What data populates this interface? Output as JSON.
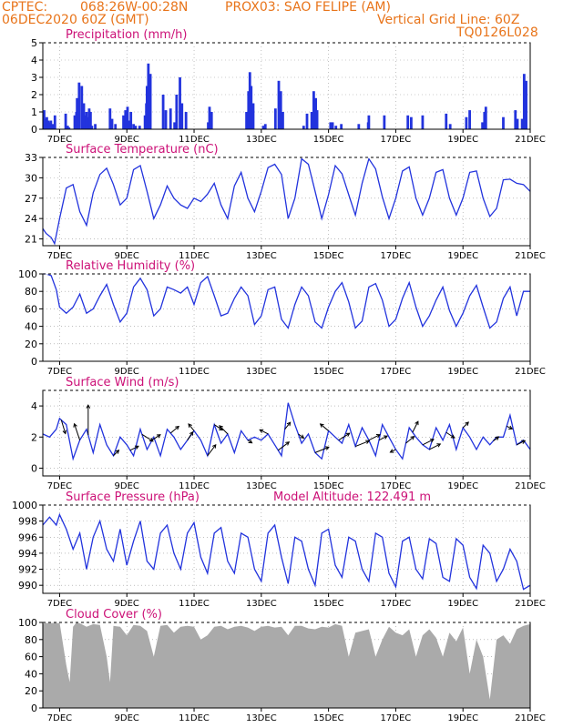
{
  "header": {
    "source": "CPTEC:",
    "coords": "068:26W-00:28N",
    "station": "PROX03: SAO FELIPE (AM)",
    "date": "06DEC2020 60Z (GMT)",
    "grid_note": "Vertical Grid Line: 60Z",
    "code": "TQ0126L028"
  },
  "x_axis": {
    "ticks": [
      "7DEC",
      "9DEC",
      "11DEC",
      "13DEC",
      "15DEC",
      "17DEC",
      "19DEC",
      "21DEC"
    ],
    "tick_days": [
      7,
      9,
      11,
      13,
      15,
      17,
      19,
      21
    ],
    "start_day": 6.5,
    "end_day": 21.0
  },
  "colors": {
    "line": "#2233dd",
    "title": "#cc1177",
    "cloud": "#aaaaaa",
    "grid": "#999999"
  },
  "chart_data": [
    {
      "type": "bar",
      "title": "Precipitation (mm/h)",
      "ylim": [
        0,
        5
      ],
      "yticks": [
        0,
        1,
        2,
        3,
        4,
        5
      ],
      "x_days": [
        6.54,
        6.58,
        6.62,
        6.66,
        6.7,
        6.74,
        6.8,
        6.86,
        7.18,
        7.24,
        7.28,
        7.45,
        7.5,
        7.52,
        7.58,
        7.66,
        7.72,
        7.76,
        7.8,
        7.84,
        7.88,
        7.92,
        7.96,
        8.06,
        8.5,
        8.56,
        8.66,
        8.9,
        8.96,
        9.02,
        9.08,
        9.12,
        9.2,
        9.26,
        9.38,
        9.54,
        9.58,
        9.6,
        9.64,
        9.7,
        10.08,
        10.16,
        10.3,
        10.42,
        10.48,
        10.58,
        10.64,
        10.76,
        11.42,
        11.46,
        11.52,
        12.56,
        12.62,
        12.66,
        12.7,
        12.76,
        13.06,
        13.12,
        13.42,
        13.52,
        13.58,
        13.64,
        14.26,
        14.36,
        14.5,
        14.56,
        14.62,
        14.66,
        15.06,
        15.12,
        15.22,
        15.38,
        15.9,
        16.18,
        16.2,
        16.66,
        17.36,
        17.46,
        17.8,
        18.5,
        18.62,
        19.1,
        19.2,
        19.58,
        19.64,
        19.68,
        20.2,
        20.56,
        20.62,
        20.76,
        20.82,
        20.88
      ],
      "values": [
        1.1,
        0.6,
        0.7,
        0.5,
        0.4,
        0.5,
        0.3,
        0.8,
        0.9,
        0.2,
        0.1,
        0.8,
        1.0,
        1.8,
        2.7,
        2.5,
        1.5,
        0.8,
        1.0,
        0.7,
        1.2,
        1.0,
        0.2,
        0.3,
        1.2,
        0.6,
        0.3,
        0.8,
        1.1,
        1.3,
        0.5,
        1.0,
        0.3,
        0.2,
        0.2,
        0.8,
        1.5,
        2.5,
        3.8,
        3.2,
        2.0,
        1.1,
        1.2,
        0.4,
        2.0,
        3.0,
        1.5,
        1.0,
        0.4,
        1.3,
        1.0,
        1.0,
        2.2,
        3.3,
        2.5,
        1.5,
        0.2,
        0.3,
        1.2,
        2.8,
        2.2,
        1.0,
        0.2,
        0.9,
        1.0,
        2.2,
        1.8,
        1.1,
        0.4,
        0.4,
        0.2,
        0.3,
        0.3,
        0.4,
        0.8,
        0.8,
        0.8,
        0.7,
        0.8,
        0.9,
        0.3,
        0.7,
        1.1,
        0.4,
        1.0,
        1.3,
        0.7,
        1.1,
        0.6,
        0.6,
        3.2,
        2.8
      ]
    },
    {
      "type": "line",
      "title": "Surface Temperature (nC)",
      "ylim": [
        20,
        33
      ],
      "yticks": [
        21,
        24,
        27,
        30,
        33
      ],
      "x_days": [
        6.5,
        6.6,
        6.75,
        6.85,
        7.0,
        7.2,
        7.4,
        7.6,
        7.8,
        8.0,
        8.2,
        8.4,
        8.6,
        8.8,
        9.0,
        9.2,
        9.4,
        9.6,
        9.8,
        10.0,
        10.2,
        10.4,
        10.6,
        10.8,
        11.0,
        11.2,
        11.4,
        11.6,
        11.8,
        12.0,
        12.2,
        12.4,
        12.6,
        12.8,
        13.0,
        13.2,
        13.4,
        13.6,
        13.8,
        14.0,
        14.2,
        14.4,
        14.6,
        14.8,
        15.0,
        15.2,
        15.4,
        15.6,
        15.8,
        16.0,
        16.2,
        16.4,
        16.6,
        16.8,
        17.0,
        17.2,
        17.4,
        17.6,
        17.8,
        18.0,
        18.2,
        18.4,
        18.6,
        18.8,
        19.0,
        19.2,
        19.4,
        19.6,
        19.8,
        20.0,
        20.2,
        20.4,
        20.6,
        20.8,
        21.0
      ],
      "values": [
        22.5,
        21.8,
        21.2,
        20.3,
        24.0,
        28.5,
        29.0,
        25.0,
        23.0,
        27.8,
        30.5,
        31.4,
        29.0,
        26.0,
        27.0,
        31.2,
        31.8,
        28.0,
        24.0,
        26.0,
        28.8,
        27.0,
        26.0,
        25.5,
        27.0,
        26.5,
        27.6,
        29.2,
        26.0,
        24.0,
        28.8,
        30.8,
        27.0,
        25.0,
        28.0,
        31.5,
        32.0,
        30.5,
        24.0,
        27.0,
        32.8,
        32.0,
        28.0,
        24.0,
        27.5,
        31.8,
        30.6,
        27.5,
        24.5,
        29.2,
        32.8,
        31.3,
        27.2,
        24.0,
        27.0,
        31.0,
        31.6,
        27.0,
        24.5,
        27.0,
        30.8,
        31.2,
        27.0,
        24.5,
        27.0,
        30.8,
        31.0,
        27.0,
        24.3,
        25.5,
        29.7,
        29.8,
        29.2,
        29.0,
        28.0
      ]
    },
    {
      "type": "line",
      "title": "Relative Humidity (%)",
      "ylim": [
        0,
        100
      ],
      "yticks": [
        0,
        20,
        40,
        60,
        80,
        100
      ],
      "x_days": [
        6.5,
        6.6,
        6.75,
        6.9,
        7.0,
        7.2,
        7.4,
        7.6,
        7.8,
        8.0,
        8.2,
        8.4,
        8.6,
        8.8,
        9.0,
        9.2,
        9.4,
        9.6,
        9.8,
        10.0,
        10.2,
        10.4,
        10.6,
        10.8,
        11.0,
        11.2,
        11.4,
        11.6,
        11.8,
        12.0,
        12.2,
        12.4,
        12.6,
        12.8,
        13.0,
        13.2,
        13.4,
        13.6,
        13.8,
        14.0,
        14.2,
        14.4,
        14.6,
        14.8,
        15.0,
        15.2,
        15.4,
        15.6,
        15.8,
        16.0,
        16.2,
        16.4,
        16.6,
        16.8,
        17.0,
        17.2,
        17.4,
        17.6,
        17.8,
        18.0,
        18.2,
        18.4,
        18.6,
        18.8,
        19.0,
        19.2,
        19.4,
        19.6,
        19.8,
        20.0,
        20.2,
        20.4,
        20.6,
        20.8,
        21.0
      ],
      "values": [
        100,
        100,
        98,
        82,
        62,
        55,
        62,
        77,
        55,
        60,
        75,
        88,
        65,
        45,
        55,
        85,
        95,
        82,
        52,
        60,
        85,
        82,
        78,
        85,
        65,
        90,
        97,
        75,
        52,
        55,
        72,
        85,
        75,
        42,
        52,
        82,
        85,
        48,
        38,
        65,
        85,
        75,
        45,
        38,
        62,
        80,
        90,
        68,
        38,
        46,
        85,
        89,
        70,
        40,
        48,
        72,
        90,
        62,
        40,
        52,
        70,
        85,
        58,
        40,
        55,
        75,
        87,
        62,
        38,
        45,
        72,
        85,
        52,
        80,
        80
      ]
    },
    {
      "type": "line",
      "title": "Surface Wind (m/s)",
      "ylim": [
        -0.5,
        5
      ],
      "yticks": [
        0,
        2,
        4
      ],
      "x_days": [
        6.5,
        6.7,
        6.9,
        7.0,
        7.2,
        7.4,
        7.6,
        7.8,
        8.0,
        8.2,
        8.4,
        8.6,
        8.8,
        9.0,
        9.2,
        9.4,
        9.6,
        9.8,
        10.0,
        10.2,
        10.4,
        10.6,
        10.8,
        11.0,
        11.2,
        11.4,
        11.6,
        11.8,
        12.0,
        12.2,
        12.4,
        12.6,
        12.8,
        13.0,
        13.2,
        13.4,
        13.6,
        13.8,
        14.0,
        14.2,
        14.4,
        14.6,
        14.8,
        15.0,
        15.2,
        15.4,
        15.6,
        15.8,
        16.0,
        16.2,
        16.4,
        16.6,
        16.8,
        17.0,
        17.2,
        17.4,
        17.6,
        17.8,
        18.0,
        18.2,
        18.4,
        18.6,
        18.8,
        19.0,
        19.2,
        19.4,
        19.6,
        19.8,
        20.0,
        20.2,
        20.4,
        20.6,
        20.8,
        21.0
      ],
      "values": [
        2.2,
        2.0,
        2.5,
        3.2,
        2.8,
        0.6,
        1.8,
        2.5,
        1.0,
        2.8,
        1.5,
        0.8,
        2.0,
        1.5,
        0.8,
        2.5,
        1.2,
        2.0,
        0.8,
        2.5,
        2.0,
        1.2,
        1.8,
        2.4,
        1.8,
        0.8,
        2.8,
        1.6,
        2.2,
        1.0,
        2.4,
        1.8,
        2.0,
        1.8,
        2.2,
        1.5,
        0.8,
        4.2,
        2.8,
        1.6,
        2.2,
        1.0,
        0.6,
        2.4,
        2.0,
        1.6,
        2.8,
        1.4,
        2.6,
        1.8,
        0.8,
        2.8,
        2.0,
        1.2,
        0.6,
        2.6,
        2.0,
        1.5,
        1.2,
        2.6,
        1.8,
        2.8,
        1.2,
        2.6,
        2.0,
        1.2,
        2.0,
        1.5,
        2.0,
        2.0,
        3.4,
        1.5,
        1.8,
        1.2
      ],
      "arrows": [
        {
          "day": 7.05,
          "dx": 0.15,
          "dy": -1.0
        },
        {
          "day": 7.6,
          "dx": -0.2,
          "dy": 1.2
        },
        {
          "day": 7.85,
          "dx": 0.0,
          "dy": 2.2
        },
        {
          "day": 8.6,
          "dx": 0.2,
          "dy": 0.4
        },
        {
          "day": 9.1,
          "dx": 0.3,
          "dy": 0.3
        },
        {
          "day": 9.45,
          "dx": 0.4,
          "dy": -0.5
        },
        {
          "day": 9.75,
          "dx": 0.3,
          "dy": 0.4
        },
        {
          "day": 10.3,
          "dx": 0.3,
          "dy": 0.5
        },
        {
          "day": 10.8,
          "dx": 0.2,
          "dy": 0.6
        },
        {
          "day": 11.0,
          "dx": -0.2,
          "dy": 0.5
        },
        {
          "day": 11.4,
          "dx": 0.3,
          "dy": 0.8
        },
        {
          "day": 11.6,
          "dx": 0.3,
          "dy": -0.4
        },
        {
          "day": 12.0,
          "dx": -0.3,
          "dy": 0.6
        },
        {
          "day": 12.6,
          "dx": 0.15,
          "dy": -0.2
        },
        {
          "day": 13.2,
          "dx": -0.3,
          "dy": 0.3
        },
        {
          "day": 13.5,
          "dx": 0.4,
          "dy": 0.6
        },
        {
          "day": 13.7,
          "dx": 0.2,
          "dy": 0.5
        },
        {
          "day": 14.1,
          "dx": 0.2,
          "dy": -0.3
        },
        {
          "day": 14.6,
          "dx": 0.5,
          "dy": 0.4
        },
        {
          "day": 15.0,
          "dx": -0.3,
          "dy": 0.5
        },
        {
          "day": 15.3,
          "dx": 0.4,
          "dy": 0.5
        },
        {
          "day": 15.8,
          "dx": 0.5,
          "dy": 0.4
        },
        {
          "day": 16.2,
          "dx": 0.4,
          "dy": 0.4
        },
        {
          "day": 16.5,
          "dx": 0.3,
          "dy": 0.3
        },
        {
          "day": 17.0,
          "dx": -0.2,
          "dy": -0.2
        },
        {
          "day": 17.3,
          "dx": 0.3,
          "dy": 0.5
        },
        {
          "day": 17.5,
          "dx": 0.2,
          "dy": 0.8
        },
        {
          "day": 17.8,
          "dx": 0.4,
          "dy": 0.4
        },
        {
          "day": 18.0,
          "dx": 0.4,
          "dy": 0.4
        },
        {
          "day": 18.5,
          "dx": 0.3,
          "dy": -0.4
        },
        {
          "day": 19.0,
          "dx": 0.2,
          "dy": 0.4
        },
        {
          "day": 19.9,
          "dx": 0.2,
          "dy": 0.3
        },
        {
          "day": 20.3,
          "dx": 0.2,
          "dy": -0.2
        },
        {
          "day": 20.6,
          "dx": 0.3,
          "dy": 0.3
        }
      ]
    },
    {
      "type": "line",
      "title": "Surface Pressure (hPa)",
      "annotation": "Model Altitude: 122.491  m",
      "ylim": [
        989,
        1000
      ],
      "yticks": [
        990,
        992,
        994,
        996,
        998,
        1000
      ],
      "x_days": [
        6.5,
        6.7,
        6.9,
        7.0,
        7.2,
        7.4,
        7.6,
        7.8,
        8.0,
        8.2,
        8.4,
        8.6,
        8.8,
        9.0,
        9.2,
        9.4,
        9.6,
        9.8,
        10.0,
        10.2,
        10.4,
        10.6,
        10.8,
        11.0,
        11.2,
        11.4,
        11.6,
        11.8,
        12.0,
        12.2,
        12.4,
        12.6,
        12.8,
        13.0,
        13.2,
        13.4,
        13.6,
        13.8,
        14.0,
        14.2,
        14.4,
        14.6,
        14.8,
        15.0,
        15.2,
        15.4,
        15.6,
        15.8,
        16.0,
        16.2,
        16.4,
        16.6,
        16.8,
        17.0,
        17.2,
        17.4,
        17.6,
        17.8,
        18.0,
        18.2,
        18.4,
        18.6,
        18.8,
        19.0,
        19.2,
        19.4,
        19.6,
        19.8,
        20.0,
        20.2,
        20.4,
        20.6,
        20.8,
        21.0
      ],
      "values": [
        997.5,
        998.5,
        997.5,
        998.8,
        997.0,
        994.5,
        996.5,
        992.0,
        996.0,
        998.0,
        994.5,
        993.0,
        997.0,
        992.5,
        995.5,
        998.0,
        993.0,
        992.0,
        996.5,
        997.5,
        994.0,
        992.0,
        996.5,
        997.8,
        993.5,
        991.5,
        996.5,
        997.2,
        993.0,
        991.5,
        996.5,
        996.0,
        992.0,
        990.5,
        996.5,
        997.5,
        993.5,
        990.2,
        996.0,
        995.5,
        992.0,
        990.0,
        996.5,
        997.0,
        992.5,
        991.0,
        996.0,
        995.5,
        992.0,
        990.5,
        996.5,
        996.0,
        991.5,
        989.8,
        995.5,
        996.0,
        992.0,
        990.8,
        995.8,
        995.2,
        991.0,
        990.5,
        995.8,
        995.0,
        991.0,
        989.6,
        995.0,
        994.0,
        990.5,
        992.0,
        994.5,
        993.0,
        989.5,
        990.0
      ]
    },
    {
      "type": "area",
      "title": "Cloud Cover (%)",
      "ylim": [
        0,
        100
      ],
      "yticks": [
        0,
        20,
        40,
        60,
        80,
        100
      ],
      "x_days": [
        6.5,
        6.6,
        6.8,
        7.0,
        7.2,
        7.3,
        7.4,
        7.5,
        7.6,
        7.8,
        8.0,
        8.2,
        8.4,
        8.5,
        8.6,
        8.8,
        9.0,
        9.2,
        9.4,
        9.6,
        9.8,
        10.0,
        10.2,
        10.4,
        10.6,
        10.8,
        11.0,
        11.2,
        11.4,
        11.6,
        11.8,
        12.0,
        12.2,
        12.4,
        12.6,
        12.8,
        13.0,
        13.2,
        13.4,
        13.6,
        13.8,
        14.0,
        14.2,
        14.4,
        14.6,
        14.8,
        15.0,
        15.2,
        15.4,
        15.6,
        15.8,
        16.0,
        16.2,
        16.4,
        16.6,
        16.8,
        17.0,
        17.2,
        17.4,
        17.6,
        17.8,
        18.0,
        18.2,
        18.4,
        18.6,
        18.8,
        19.0,
        19.2,
        19.4,
        19.6,
        19.8,
        20.0,
        20.2,
        20.4,
        20.6,
        20.8,
        21.0
      ],
      "values": [
        98,
        100,
        100,
        100,
        50,
        30,
        95,
        100,
        99,
        95,
        98,
        97,
        60,
        30,
        96,
        95,
        85,
        97,
        96,
        90,
        60,
        96,
        97,
        88,
        95,
        96,
        95,
        80,
        85,
        95,
        96,
        92,
        95,
        96,
        94,
        90,
        95,
        96,
        94,
        95,
        85,
        96,
        96,
        93,
        92,
        95,
        94,
        98,
        96,
        60,
        88,
        90,
        92,
        60,
        80,
        95,
        88,
        85,
        92,
        60,
        85,
        92,
        82,
        60,
        88,
        78,
        94,
        40,
        80,
        60,
        10,
        80,
        85,
        75,
        92,
        96,
        98
      ]
    }
  ]
}
